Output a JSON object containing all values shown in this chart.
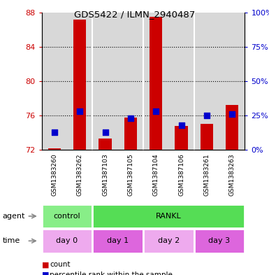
{
  "title": "GDS5422 / ILMN_2940487",
  "samples": [
    "GSM1383260",
    "GSM1383262",
    "GSM1387103",
    "GSM1387105",
    "GSM1387104",
    "GSM1387106",
    "GSM1383261",
    "GSM1383263"
  ],
  "counts": [
    72.2,
    87.2,
    73.3,
    75.8,
    87.5,
    74.8,
    75.0,
    77.2
  ],
  "percentiles": [
    13,
    28,
    13,
    23,
    28,
    18,
    25,
    26
  ],
  "ylim_left": [
    72,
    88
  ],
  "ylim_right": [
    0,
    100
  ],
  "yticks_left": [
    72,
    76,
    80,
    84,
    88
  ],
  "yticks_right": [
    0,
    25,
    50,
    75,
    100
  ],
  "agent_labels": [
    {
      "label": "control",
      "start": 0,
      "end": 2,
      "color": "#88EE88"
    },
    {
      "label": "RANKL",
      "start": 2,
      "end": 8,
      "color": "#55DD55"
    }
  ],
  "time_labels": [
    {
      "label": "day 0",
      "start": 0,
      "end": 2,
      "color": "#EEAAEE"
    },
    {
      "label": "day 1",
      "start": 2,
      "end": 4,
      "color": "#DD66DD"
    },
    {
      "label": "day 2",
      "start": 4,
      "end": 6,
      "color": "#EEAAEE"
    },
    {
      "label": "day 3",
      "start": 6,
      "end": 8,
      "color": "#DD66DD"
    }
  ],
  "bar_color": "#CC0000",
  "dot_color": "#0000CC",
  "bar_width": 0.5,
  "dot_size": 30,
  "plot_bg_color": "#D8D8D8",
  "legend_red": "count",
  "legend_blue": "percentile rank within the sample",
  "left_tick_color": "#CC0000",
  "right_tick_color": "#0000CC",
  "gridline_ticks": [
    76,
    80,
    84
  ]
}
